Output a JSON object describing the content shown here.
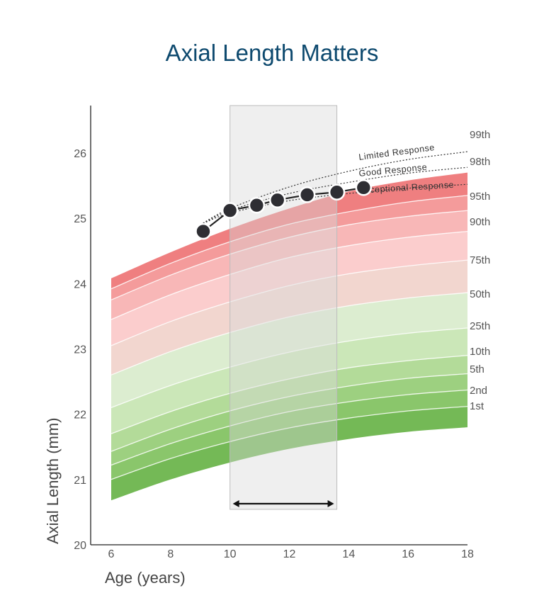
{
  "chart_data": {
    "type": "line",
    "title": "Axial Length Matters",
    "xlabel": "Age (years)",
    "ylabel": "Axial Length (mm)",
    "xlim": [
      6,
      18
    ],
    "ylim": [
      20,
      26.9
    ],
    "x_ticks": [
      "6",
      "8",
      "10",
      "12",
      "14",
      "16",
      "18"
    ],
    "y_ticks": [
      "20",
      "21",
      "22",
      "23",
      "24",
      "25",
      "26"
    ],
    "percentile_bands": {
      "ages": [
        6,
        8,
        10,
        12,
        14,
        16,
        18
      ],
      "curves": [
        {
          "name": "1st",
          "color": "#74b956",
          "values": [
            21.0,
            21.32,
            21.58,
            21.79,
            21.94,
            22.05,
            22.12
          ]
        },
        {
          "name": "2nd",
          "color": "#8ac66b",
          "values": [
            21.22,
            21.55,
            21.82,
            22.04,
            22.19,
            22.3,
            22.37
          ]
        },
        {
          "name": "5th",
          "color": "#9dd080",
          "values": [
            21.43,
            21.77,
            22.05,
            22.27,
            22.43,
            22.55,
            22.62
          ]
        },
        {
          "name": "10th",
          "color": "#b3db99",
          "values": [
            21.7,
            22.04,
            22.32,
            22.54,
            22.71,
            22.82,
            22.9
          ]
        },
        {
          "name": "25th",
          "color": "#cbe7b8",
          "values": [
            22.1,
            22.44,
            22.72,
            22.95,
            23.12,
            23.24,
            23.32
          ]
        },
        {
          "name": "50th",
          "color": "#dcedd0",
          "values": [
            22.6,
            22.96,
            23.25,
            23.49,
            23.66,
            23.78,
            23.86
          ]
        },
        {
          "name": "75th",
          "color": "#f2d6cf",
          "values": [
            23.05,
            23.42,
            23.72,
            23.97,
            24.15,
            24.27,
            24.36
          ]
        },
        {
          "name": "90th",
          "color": "#fbcdcd",
          "values": [
            23.45,
            23.83,
            24.14,
            24.4,
            24.58,
            24.71,
            24.8
          ]
        },
        {
          "name": "95th",
          "color": "#f8b7b7",
          "values": [
            23.75,
            24.13,
            24.45,
            24.71,
            24.9,
            25.03,
            25.12
          ]
        },
        {
          "name": "98th",
          "color": "#f49b9b",
          "values": [
            23.92,
            24.31,
            24.64,
            24.91,
            25.1,
            25.25,
            25.35
          ]
        },
        {
          "name": "99th",
          "color": "#ef7f80",
          "values": [
            24.08,
            24.48,
            24.84,
            25.15,
            25.41,
            25.58,
            25.7
          ]
        }
      ]
    },
    "response_curves": [
      {
        "name": "Limited Response",
        "x": [
          9,
          10,
          12,
          14,
          16,
          18
        ],
        "y": [
          24.9,
          25.15,
          25.48,
          25.72,
          25.9,
          26.02
        ]
      },
      {
        "name": "Good Response",
        "x": [
          9,
          10,
          12,
          14,
          16,
          18
        ],
        "y": [
          24.9,
          25.12,
          25.38,
          25.55,
          25.69,
          25.78
        ]
      },
      {
        "name": "Exceptional Response",
        "x": [
          9,
          10,
          12,
          14,
          16,
          18
        ],
        "y": [
          24.9,
          25.08,
          25.27,
          25.38,
          25.46,
          25.52
        ]
      }
    ],
    "patient_series": {
      "x": [
        9.1,
        10.0,
        10.9,
        11.6,
        12.6,
        13.6,
        14.5
      ],
      "y": [
        24.8,
        25.12,
        25.2,
        25.28,
        25.36,
        25.4,
        25.47
      ]
    },
    "treatment_window": {
      "start_age": 10,
      "end_age": 13.6
    }
  }
}
